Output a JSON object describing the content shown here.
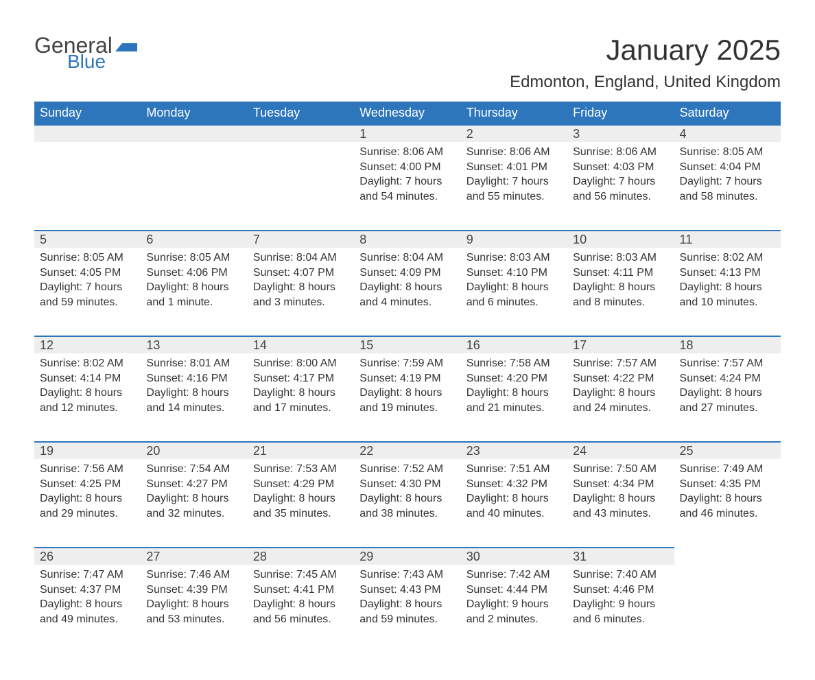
{
  "brand": {
    "part1": "General",
    "part2": "Blue",
    "logo_color": "#2d76bc",
    "text_color": "#444444"
  },
  "title": "January 2025",
  "subtitle": "Edmonton, England, United Kingdom",
  "colors": {
    "header_bg": "#2d76bc",
    "header_text": "#ffffff",
    "daynum_bg": "#eeeeee",
    "daynum_border": "#2d76bc",
    "body_text": "#333333",
    "page_bg": "#ffffff"
  },
  "fonts": {
    "title_size": 42,
    "subtitle_size": 24,
    "header_size": 18,
    "daynum_size": 18,
    "body_size": 16
  },
  "layout": {
    "columns": 7,
    "body_rows": 5,
    "first_day_column_index": 3
  },
  "weekdays": [
    "Sunday",
    "Monday",
    "Tuesday",
    "Wednesday",
    "Thursday",
    "Friday",
    "Saturday"
  ],
  "days": [
    {
      "n": 1,
      "sunrise": "8:06 AM",
      "sunset": "4:00 PM",
      "daylight": "7 hours and 54 minutes."
    },
    {
      "n": 2,
      "sunrise": "8:06 AM",
      "sunset": "4:01 PM",
      "daylight": "7 hours and 55 minutes."
    },
    {
      "n": 3,
      "sunrise": "8:06 AM",
      "sunset": "4:03 PM",
      "daylight": "7 hours and 56 minutes."
    },
    {
      "n": 4,
      "sunrise": "8:05 AM",
      "sunset": "4:04 PM",
      "daylight": "7 hours and 58 minutes."
    },
    {
      "n": 5,
      "sunrise": "8:05 AM",
      "sunset": "4:05 PM",
      "daylight": "7 hours and 59 minutes."
    },
    {
      "n": 6,
      "sunrise": "8:05 AM",
      "sunset": "4:06 PM",
      "daylight": "8 hours and 1 minute."
    },
    {
      "n": 7,
      "sunrise": "8:04 AM",
      "sunset": "4:07 PM",
      "daylight": "8 hours and 3 minutes."
    },
    {
      "n": 8,
      "sunrise": "8:04 AM",
      "sunset": "4:09 PM",
      "daylight": "8 hours and 4 minutes."
    },
    {
      "n": 9,
      "sunrise": "8:03 AM",
      "sunset": "4:10 PM",
      "daylight": "8 hours and 6 minutes."
    },
    {
      "n": 10,
      "sunrise": "8:03 AM",
      "sunset": "4:11 PM",
      "daylight": "8 hours and 8 minutes."
    },
    {
      "n": 11,
      "sunrise": "8:02 AM",
      "sunset": "4:13 PM",
      "daylight": "8 hours and 10 minutes."
    },
    {
      "n": 12,
      "sunrise": "8:02 AM",
      "sunset": "4:14 PM",
      "daylight": "8 hours and 12 minutes."
    },
    {
      "n": 13,
      "sunrise": "8:01 AM",
      "sunset": "4:16 PM",
      "daylight": "8 hours and 14 minutes."
    },
    {
      "n": 14,
      "sunrise": "8:00 AM",
      "sunset": "4:17 PM",
      "daylight": "8 hours and 17 minutes."
    },
    {
      "n": 15,
      "sunrise": "7:59 AM",
      "sunset": "4:19 PM",
      "daylight": "8 hours and 19 minutes."
    },
    {
      "n": 16,
      "sunrise": "7:58 AM",
      "sunset": "4:20 PM",
      "daylight": "8 hours and 21 minutes."
    },
    {
      "n": 17,
      "sunrise": "7:57 AM",
      "sunset": "4:22 PM",
      "daylight": "8 hours and 24 minutes."
    },
    {
      "n": 18,
      "sunrise": "7:57 AM",
      "sunset": "4:24 PM",
      "daylight": "8 hours and 27 minutes."
    },
    {
      "n": 19,
      "sunrise": "7:56 AM",
      "sunset": "4:25 PM",
      "daylight": "8 hours and 29 minutes."
    },
    {
      "n": 20,
      "sunrise": "7:54 AM",
      "sunset": "4:27 PM",
      "daylight": "8 hours and 32 minutes."
    },
    {
      "n": 21,
      "sunrise": "7:53 AM",
      "sunset": "4:29 PM",
      "daylight": "8 hours and 35 minutes."
    },
    {
      "n": 22,
      "sunrise": "7:52 AM",
      "sunset": "4:30 PM",
      "daylight": "8 hours and 38 minutes."
    },
    {
      "n": 23,
      "sunrise": "7:51 AM",
      "sunset": "4:32 PM",
      "daylight": "8 hours and 40 minutes."
    },
    {
      "n": 24,
      "sunrise": "7:50 AM",
      "sunset": "4:34 PM",
      "daylight": "8 hours and 43 minutes."
    },
    {
      "n": 25,
      "sunrise": "7:49 AM",
      "sunset": "4:35 PM",
      "daylight": "8 hours and 46 minutes."
    },
    {
      "n": 26,
      "sunrise": "7:47 AM",
      "sunset": "4:37 PM",
      "daylight": "8 hours and 49 minutes."
    },
    {
      "n": 27,
      "sunrise": "7:46 AM",
      "sunset": "4:39 PM",
      "daylight": "8 hours and 53 minutes."
    },
    {
      "n": 28,
      "sunrise": "7:45 AM",
      "sunset": "4:41 PM",
      "daylight": "8 hours and 56 minutes."
    },
    {
      "n": 29,
      "sunrise": "7:43 AM",
      "sunset": "4:43 PM",
      "daylight": "8 hours and 59 minutes."
    },
    {
      "n": 30,
      "sunrise": "7:42 AM",
      "sunset": "4:44 PM",
      "daylight": "9 hours and 2 minutes."
    },
    {
      "n": 31,
      "sunrise": "7:40 AM",
      "sunset": "4:46 PM",
      "daylight": "9 hours and 6 minutes."
    }
  ],
  "labels": {
    "sunrise": "Sunrise:",
    "sunset": "Sunset:",
    "daylight": "Daylight:"
  }
}
